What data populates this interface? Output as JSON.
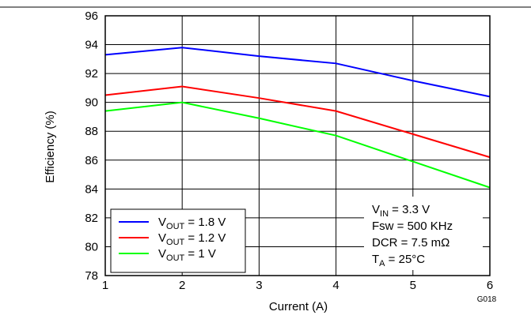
{
  "chart_data": {
    "type": "line",
    "xlabel": "Current (A)",
    "ylabel": "Efficiency (%)",
    "xlim": [
      1,
      6
    ],
    "ylim": [
      78,
      96
    ],
    "xticks": [
      "1",
      "2",
      "3",
      "4",
      "5",
      "6"
    ],
    "yticks": [
      "78",
      "80",
      "82",
      "84",
      "86",
      "88",
      "90",
      "92",
      "94",
      "96"
    ],
    "grid": true,
    "legend_position": "bottom-left",
    "series": [
      {
        "name_main": "V",
        "name_sub": "OUT",
        "name_rest": " = 1.8 V",
        "color": "#0000ff",
        "x": [
          1,
          2,
          3,
          4,
          5,
          6
        ],
        "y": [
          93.3,
          93.8,
          93.2,
          92.7,
          91.5,
          90.4
        ]
      },
      {
        "name_main": "V",
        "name_sub": "OUT",
        "name_rest": " = 1.2 V",
        "color": "#ff0000",
        "x": [
          1,
          2,
          3,
          4,
          5,
          6
        ],
        "y": [
          90.5,
          91.1,
          90.3,
          89.4,
          87.8,
          86.2
        ]
      },
      {
        "name_main": "V",
        "name_sub": "OUT",
        "name_rest": " = 1 V",
        "color": "#00ff00",
        "x": [
          1,
          2,
          3,
          4,
          5,
          6
        ],
        "y": [
          89.4,
          90.0,
          88.9,
          87.7,
          85.9,
          84.1
        ]
      }
    ],
    "annotations": {
      "vin": {
        "main": "V",
        "sub": "IN",
        "rest": " = 3.3 V"
      },
      "fsw": "Fsw = 500 KHz",
      "dcr": "DCR = 7.5 mΩ",
      "ta": {
        "main": "T",
        "sub": "A",
        "rest": " = 25°C"
      }
    },
    "figure_id": "G018"
  }
}
